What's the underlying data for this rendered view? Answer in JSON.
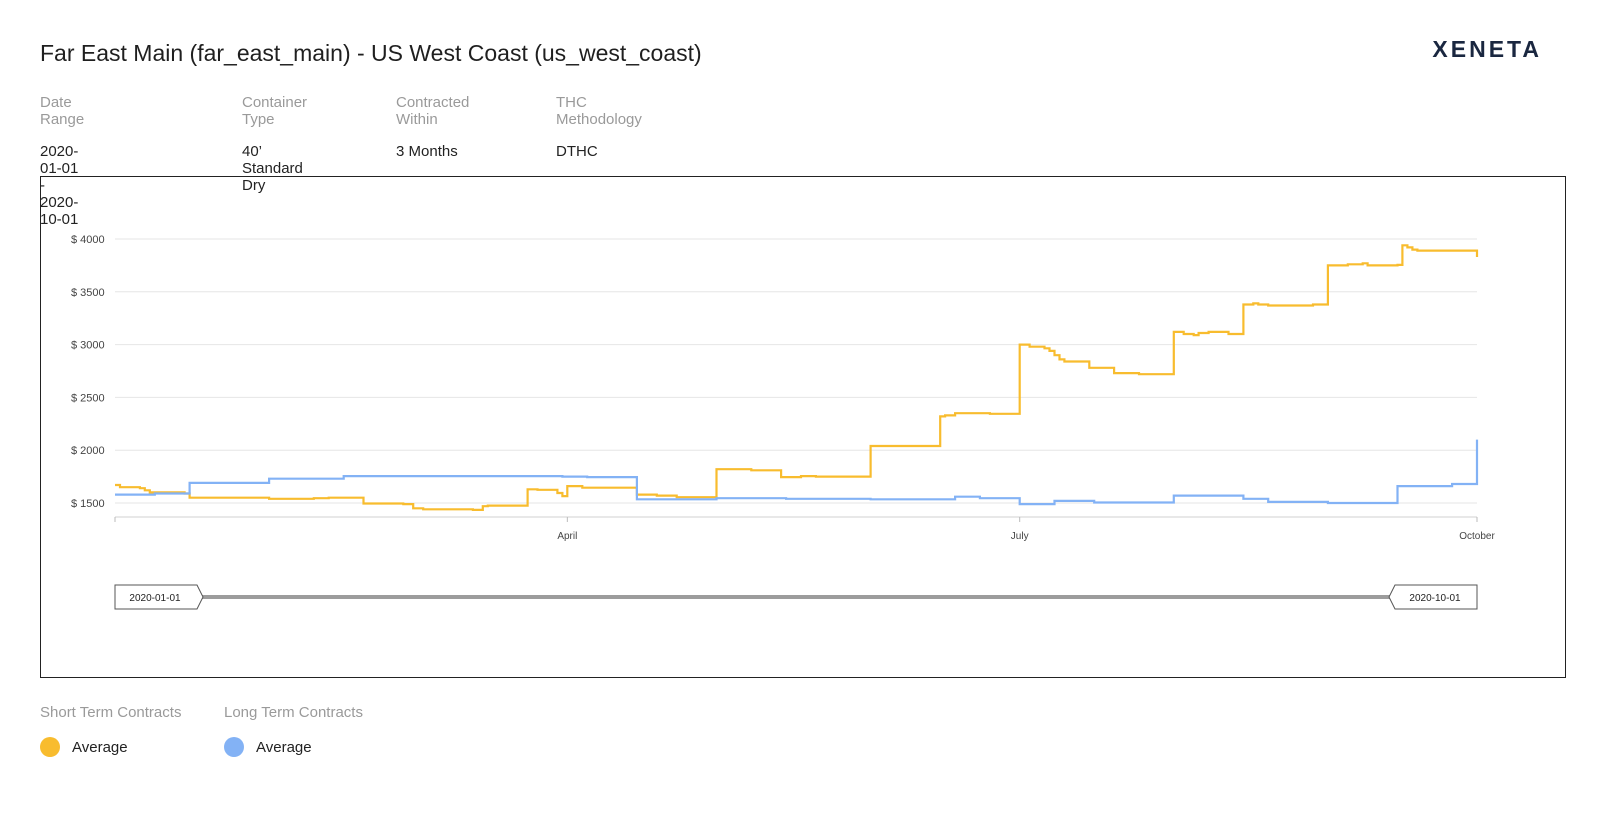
{
  "title": "Far East Main (far_east_main) - US West Coast (us_west_coast)",
  "logo": "XENETA",
  "meta": [
    {
      "label": "Date Range",
      "value": "2020-01-01 - 2020-10-01"
    },
    {
      "label": "Container Type",
      "value": "40’ Standard Dry"
    },
    {
      "label": "Contracted Within",
      "value": "3 Months"
    },
    {
      "label": "THC Methodology",
      "value": "DTHC"
    }
  ],
  "legend": {
    "short_term": {
      "title": "Short Term Contracts",
      "item": "Average",
      "color": "#F8BC2E"
    },
    "long_term": {
      "title": "Long Term Contracts",
      "item": "Average",
      "color": "#83B2F5"
    }
  },
  "navigator": {
    "start_label": "2020-01-01",
    "end_label": "2020-10-01"
  },
  "chart_data": {
    "type": "line",
    "step": true,
    "x_range": [
      "2020-01-01",
      "2020-10-01"
    ],
    "ylim": [
      1350,
      4200
    ],
    "y_ticks": [
      1500,
      2000,
      2500,
      3000,
      3500,
      4000
    ],
    "y_tick_labels": [
      "$ 1500",
      "$ 2000",
      "$ 2500",
      "$ 3000",
      "$ 3500",
      "$ 4000"
    ],
    "x_ticks": [
      {
        "date": "2020-04-01",
        "label": "April"
      },
      {
        "date": "2020-07-01",
        "label": "July"
      },
      {
        "date": "2020-10-01",
        "label": "October"
      }
    ],
    "grid": true,
    "series": [
      {
        "name": "Short Term Contracts Average",
        "color": "#F8BC2E",
        "points": [
          [
            "2020-01-01",
            1670
          ],
          [
            "2020-01-02",
            1650
          ],
          [
            "2020-01-06",
            1640
          ],
          [
            "2020-01-07",
            1620
          ],
          [
            "2020-01-08",
            1600
          ],
          [
            "2020-01-15",
            1590
          ],
          [
            "2020-01-16",
            1550
          ],
          [
            "2020-02-01",
            1540
          ],
          [
            "2020-02-10",
            1545
          ],
          [
            "2020-02-13",
            1550
          ],
          [
            "2020-02-20",
            1495
          ],
          [
            "2020-02-28",
            1490
          ],
          [
            "2020-03-01",
            1450
          ],
          [
            "2020-03-03",
            1440
          ],
          [
            "2020-03-13",
            1435
          ],
          [
            "2020-03-15",
            1470
          ],
          [
            "2020-03-16",
            1475
          ],
          [
            "2020-03-24",
            1630
          ],
          [
            "2020-03-26",
            1625
          ],
          [
            "2020-03-30",
            1595
          ],
          [
            "2020-03-31",
            1565
          ],
          [
            "2020-04-01",
            1660
          ],
          [
            "2020-04-04",
            1645
          ],
          [
            "2020-04-15",
            1630
          ],
          [
            "2020-04-15",
            1580
          ],
          [
            "2020-04-19",
            1570
          ],
          [
            "2020-04-23",
            1555
          ],
          [
            "2020-05-01",
            1820
          ],
          [
            "2020-05-08",
            1810
          ],
          [
            "2020-05-14",
            1800
          ],
          [
            "2020-05-14",
            1745
          ],
          [
            "2020-05-18",
            1755
          ],
          [
            "2020-05-21",
            1750
          ],
          [
            "2020-06-01",
            2040
          ],
          [
            "2020-06-15",
            2320
          ],
          [
            "2020-06-16",
            2330
          ],
          [
            "2020-06-18",
            2350
          ],
          [
            "2020-06-25",
            2345
          ],
          [
            "2020-07-01",
            3000
          ],
          [
            "2020-07-03",
            2980
          ],
          [
            "2020-07-06",
            2965
          ],
          [
            "2020-07-07",
            2940
          ],
          [
            "2020-07-08",
            2900
          ],
          [
            "2020-07-09",
            2860
          ],
          [
            "2020-07-10",
            2840
          ],
          [
            "2020-07-15",
            2780
          ],
          [
            "2020-07-20",
            2765
          ],
          [
            "2020-07-20",
            2730
          ],
          [
            "2020-07-25",
            2720
          ],
          [
            "2020-08-01",
            3120
          ],
          [
            "2020-08-03",
            3100
          ],
          [
            "2020-08-05",
            3090
          ],
          [
            "2020-08-06",
            3110
          ],
          [
            "2020-08-08",
            3120
          ],
          [
            "2020-08-12",
            3100
          ],
          [
            "2020-08-15",
            3380
          ],
          [
            "2020-08-17",
            3390
          ],
          [
            "2020-08-18",
            3380
          ],
          [
            "2020-08-20",
            3370
          ],
          [
            "2020-08-29",
            3380
          ],
          [
            "2020-09-01",
            3750
          ],
          [
            "2020-09-05",
            3760
          ],
          [
            "2020-09-08",
            3770
          ],
          [
            "2020-09-09",
            3750
          ],
          [
            "2020-09-15",
            3755
          ],
          [
            "2020-09-16",
            3940
          ],
          [
            "2020-09-17",
            3920
          ],
          [
            "2020-09-18",
            3900
          ],
          [
            "2020-09-19",
            3890
          ],
          [
            "2020-10-01",
            3830
          ]
        ]
      },
      {
        "name": "Long Term Contracts Average",
        "color": "#83B2F5",
        "points": [
          [
            "2020-01-01",
            1580
          ],
          [
            "2020-01-09",
            1590
          ],
          [
            "2020-01-16",
            1690
          ],
          [
            "2020-02-01",
            1730
          ],
          [
            "2020-02-16",
            1755
          ],
          [
            "2020-03-31",
            1750
          ],
          [
            "2020-04-05",
            1745
          ],
          [
            "2020-04-15",
            1535
          ],
          [
            "2020-05-01",
            1545
          ],
          [
            "2020-05-15",
            1540
          ],
          [
            "2020-06-01",
            1535
          ],
          [
            "2020-06-18",
            1560
          ],
          [
            "2020-06-23",
            1545
          ],
          [
            "2020-07-01",
            1490
          ],
          [
            "2020-07-08",
            1520
          ],
          [
            "2020-07-16",
            1505
          ],
          [
            "2020-08-01",
            1570
          ],
          [
            "2020-08-15",
            1540
          ],
          [
            "2020-08-20",
            1510
          ],
          [
            "2020-09-01",
            1500
          ],
          [
            "2020-09-15",
            1660
          ],
          [
            "2020-09-26",
            1680
          ],
          [
            "2020-10-01",
            2100
          ]
        ]
      }
    ]
  }
}
